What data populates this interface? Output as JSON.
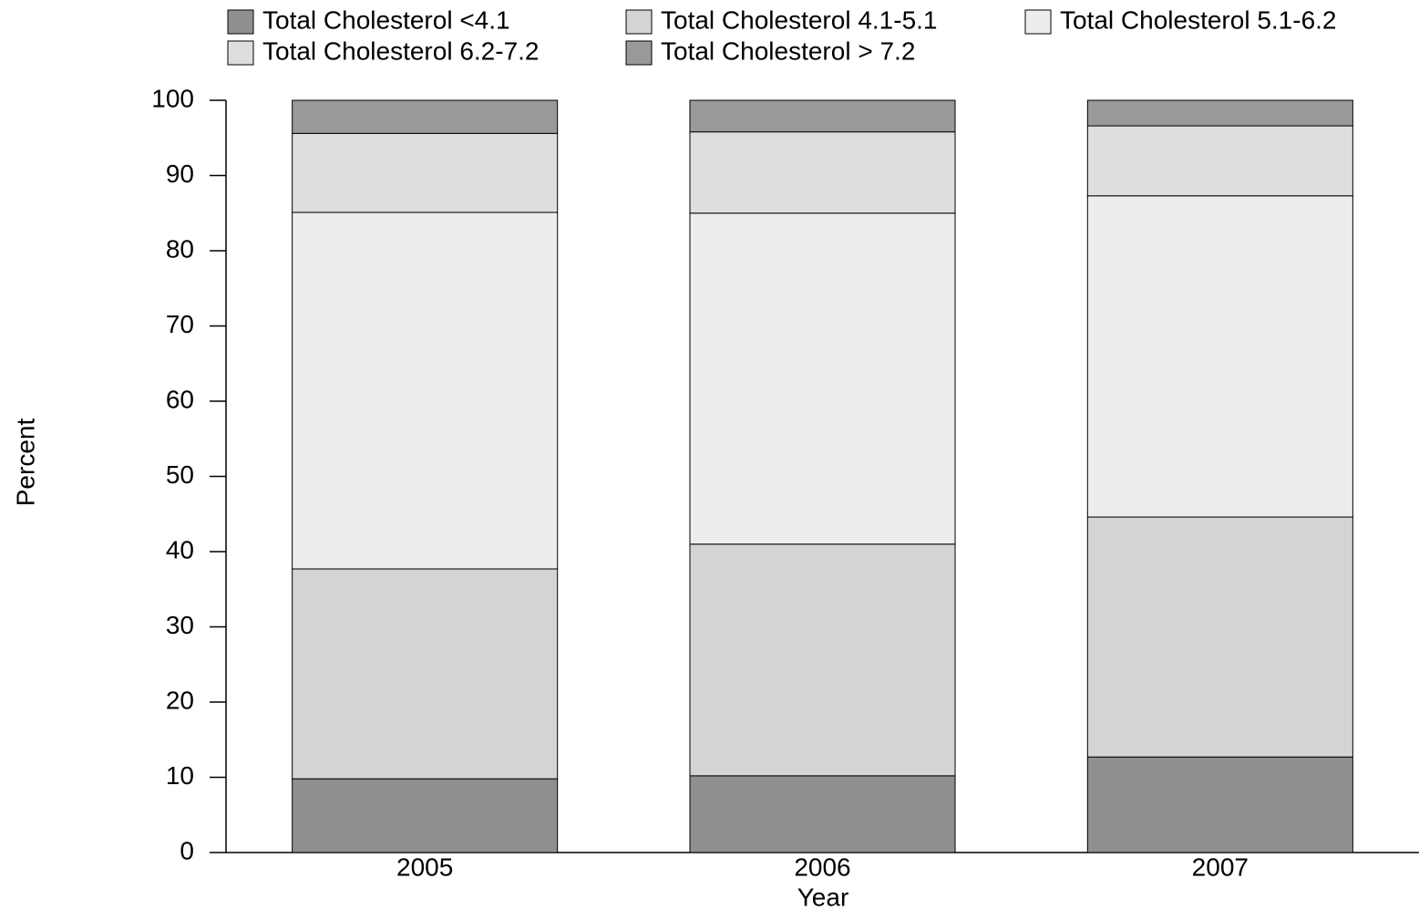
{
  "chart_data": {
    "type": "stacked_bar",
    "x_label": "Year",
    "y_label": "Percent",
    "categories": [
      "2005",
      "2006",
      "2007"
    ],
    "series": [
      {
        "name": "Total Cholesterol <4.1",
        "color": "#8f8f8f",
        "values": [
          9.8,
          10.2,
          12.7
        ]
      },
      {
        "name": "Total Cholesterol 4.1-5.1",
        "color": "#d4d4d4",
        "values": [
          27.9,
          30.8,
          31.9
        ]
      },
      {
        "name": "Total Cholesterol 5.1-6.2",
        "color": "#ededed",
        "values": [
          47.4,
          44.0,
          42.7
        ]
      },
      {
        "name": "Total Cholesterol 6.2-7.2",
        "color": "#dedede",
        "values": [
          10.5,
          10.8,
          9.3
        ]
      },
      {
        "name": "Total Cholesterol > 7.2",
        "color": "#999999",
        "values": [
          4.4,
          4.2,
          3.4
        ]
      }
    ],
    "ylim": [
      0,
      100
    ],
    "yticks": [
      0,
      10,
      20,
      30,
      40,
      50,
      60,
      70,
      80,
      90,
      100
    ]
  }
}
